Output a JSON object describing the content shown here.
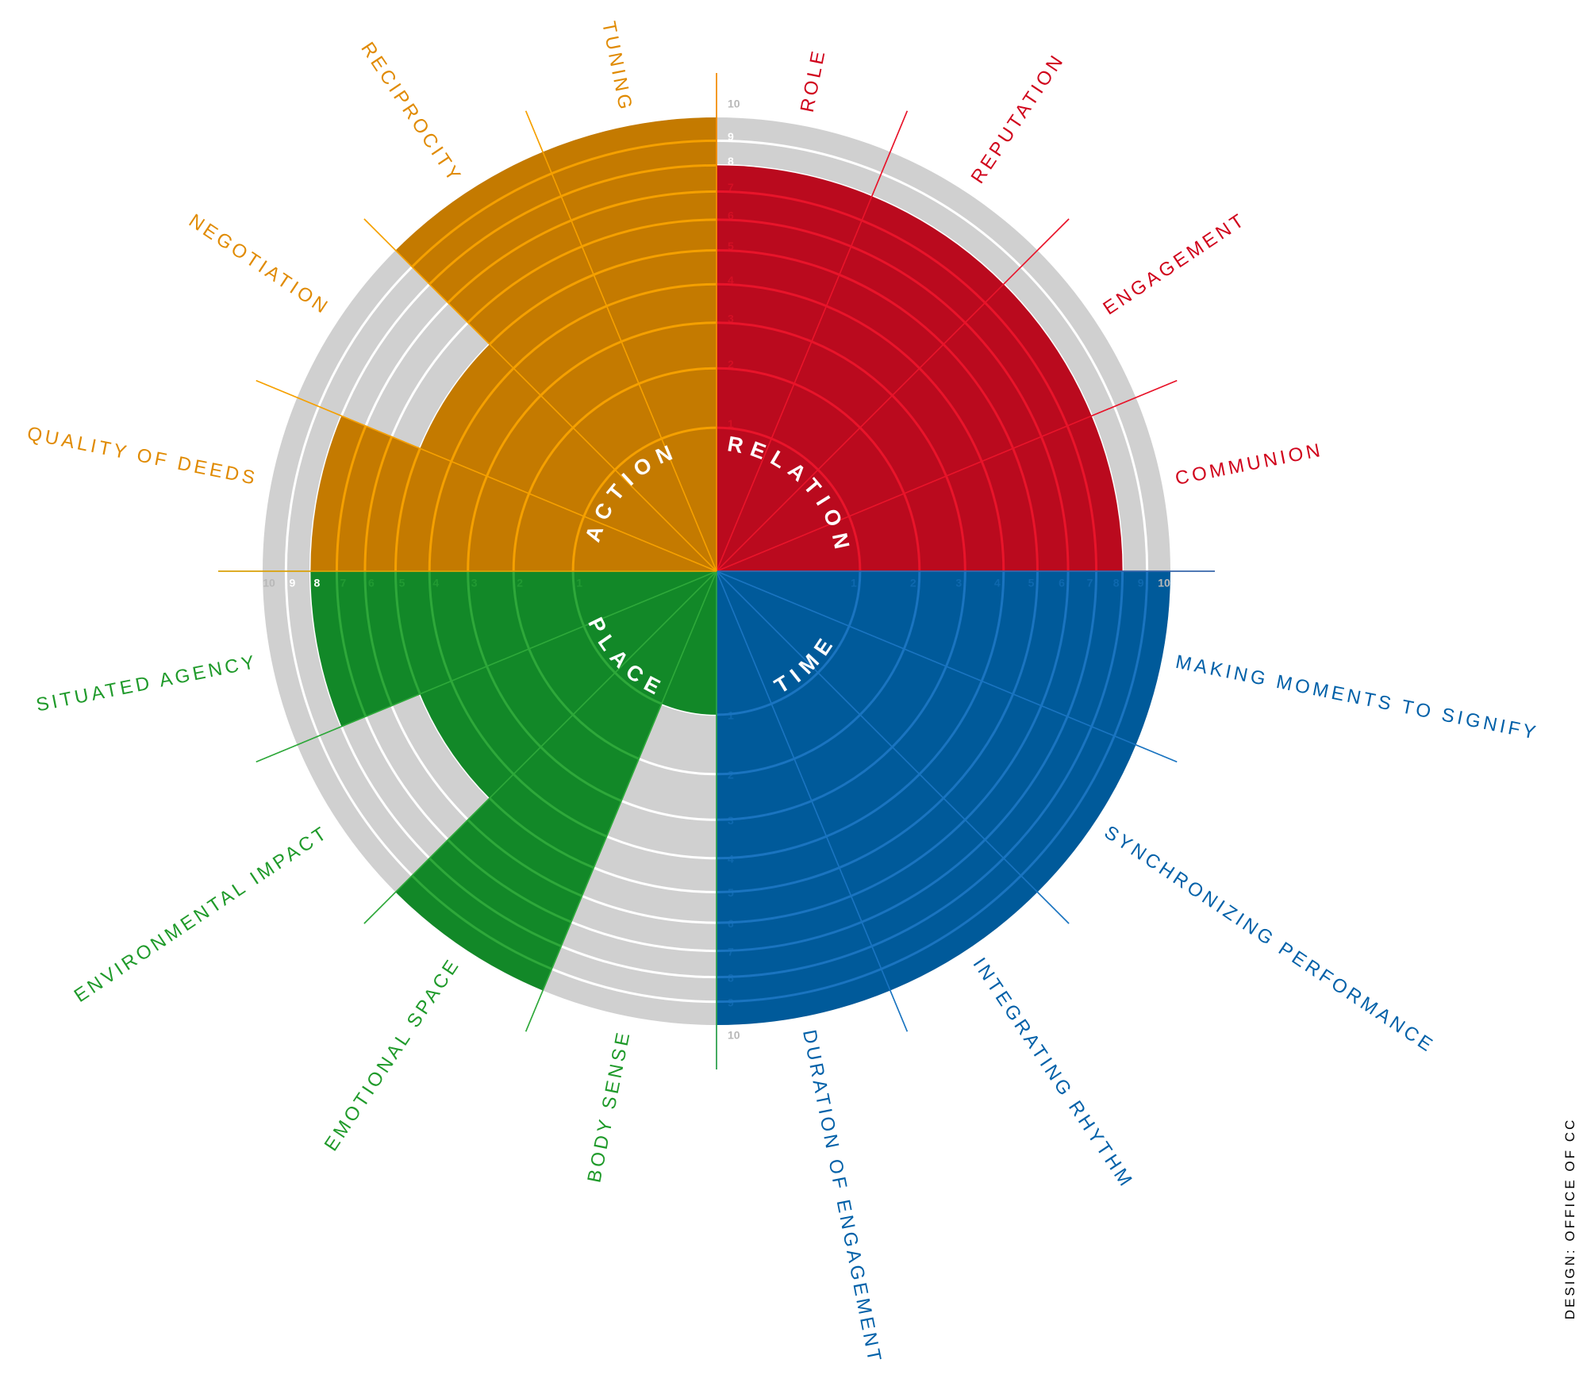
{
  "chart_data": {
    "type": "polar-area",
    "radial_scale": "sqrt",
    "rmax": 10,
    "ticks": [
      1,
      2,
      3,
      4,
      5,
      6,
      7,
      8,
      9,
      10
    ],
    "background_color": "#D0D0D0",
    "quadrants": [
      {
        "name": "RELATION",
        "color": "#BA0A1E",
        "line_color": "#E8142A",
        "label_color": "#D0021B",
        "items": [
          {
            "label": "ROLE",
            "value": 8
          },
          {
            "label": "REPUTATION",
            "value": 8
          },
          {
            "label": "ENGAGEMENT",
            "value": 8
          },
          {
            "label": "COMMUNION",
            "value": 8
          }
        ]
      },
      {
        "name": "TIME",
        "color": "#005A9A",
        "line_color": "#1A74C0",
        "label_color": "#0060A8",
        "items": [
          {
            "label": "MAKING MOMENTS TO SIGNIFY",
            "value": 10
          },
          {
            "label": "SYNCHRONIZING PERFORMANCE",
            "value": 10
          },
          {
            "label": "INTEGRATING RHYTHM",
            "value": 10
          },
          {
            "label": "DURATION OF ENGAGEMENT",
            "value": 10
          }
        ]
      },
      {
        "name": "PLACE",
        "color": "#128828",
        "line_color": "#2EA83A",
        "label_color": "#1F9A2A",
        "items": [
          {
            "label": "BODY SENSE",
            "value": 1
          },
          {
            "label": "EMOTIONAL SPACE",
            "value": 10
          },
          {
            "label": "ENVIRONMENTAL IMPACT",
            "value": 5
          },
          {
            "label": "SITUATED AGENCY",
            "value": 8
          }
        ]
      },
      {
        "name": "ACTION",
        "color": "#C47A00",
        "line_color": "#F5A000",
        "label_color": "#E08A00",
        "items": [
          {
            "label": "QUALITY OF DEEDS",
            "value": 8
          },
          {
            "label": "NEGOTIATION",
            "value": 5
          },
          {
            "label": "RECIPROCITY",
            "value": 10
          },
          {
            "label": "TUNING",
            "value": 10
          }
        ]
      }
    ]
  },
  "credit": "DESIGN: OFFICE OF CC"
}
